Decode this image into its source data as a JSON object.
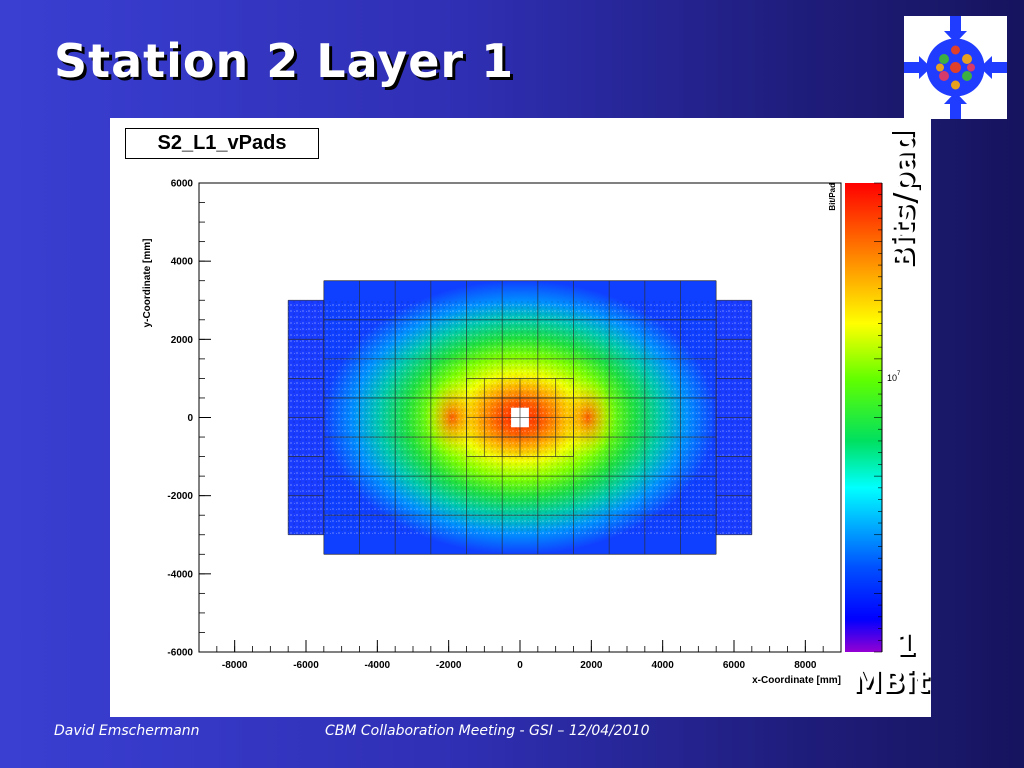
{
  "slide": {
    "title": "Station 2 Layer 1",
    "footer_left": "David Emschermann",
    "footer_center": "CBM Collaboration Meeting - GSI – 12/04/2010",
    "annotation_bits_pad": "Bits/pad",
    "annotation_one": "1",
    "annotation_mbit": "MBit",
    "logo_icon": "cbm-detector-logo-icon"
  },
  "chart_data": {
    "type": "heatmap",
    "histogram_name": "S2_L1_vPads",
    "xlabel": "x-Coordinate [mm]",
    "ylabel": "y-Coordinate [mm]",
    "zlabel": "Bit/Pad",
    "xlim": [
      -9000,
      9000
    ],
    "ylim": [
      -6000,
      6000
    ],
    "x_ticks": [
      -8000,
      -6000,
      -4000,
      -2000,
      0,
      2000,
      4000,
      6000,
      8000
    ],
    "y_ticks": [
      -6000,
      -4000,
      -2000,
      0,
      2000,
      4000,
      6000
    ],
    "z_tick_label": "10",
    "z_tick_exponent": "7",
    "colormap": [
      "#ff0000",
      "#ff7f00",
      "#ffff00",
      "#00ff00",
      "#00ffff",
      "#0000ff",
      "#9400d3"
    ],
    "outer_region_mm": {
      "x": [
        -5500,
        5500
      ],
      "y": [
        -3500,
        3500
      ]
    },
    "side_region_mm": {
      "x": [
        -6500,
        6500
      ],
      "y": [
        -3000,
        3000
      ]
    },
    "inner_region_mm": {
      "x": [
        -1500,
        1500
      ],
      "y": [
        -1000,
        1000
      ]
    },
    "beam_hole_mm": {
      "x": [
        -250,
        250
      ],
      "y": [
        -250,
        250
      ]
    },
    "grid": false
  }
}
